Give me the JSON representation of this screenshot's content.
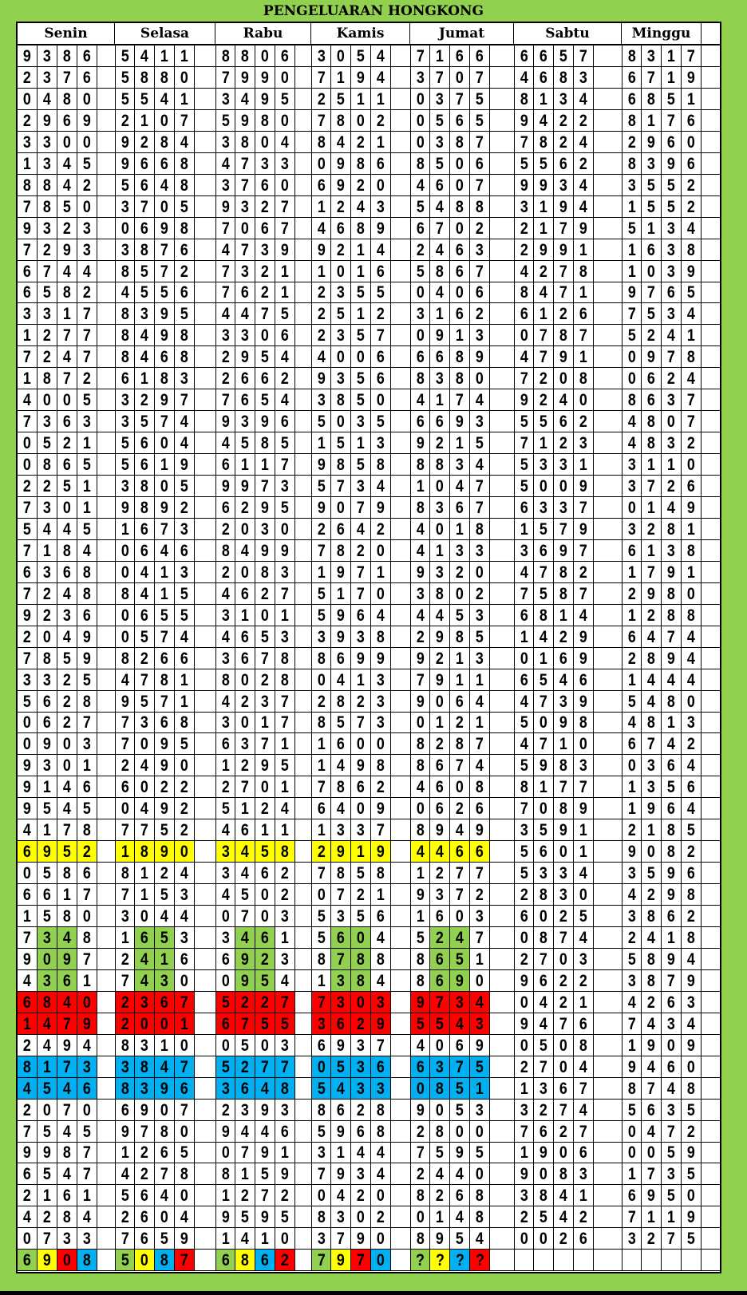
{
  "title": "PENGELUARAN HONGKONG",
  "days": [
    "Senin",
    "Selasa",
    "Rabu",
    "Kamis",
    "Jumat",
    "Sabtu",
    "Minggu"
  ],
  "colors": {
    "background": "#92d050",
    "g": "#92d050",
    "y": "#ffff00",
    "r": "#ff0000",
    "b": "#00b0f0"
  },
  "rows": [
    {
      "cells": [
        "9386",
        "5411",
        "8806",
        "3054",
        "7166",
        "6657",
        "8317"
      ]
    },
    {
      "cells": [
        "2376",
        "5880",
        "7990",
        "7194",
        "3707",
        "4683",
        "6719"
      ]
    },
    {
      "cells": [
        "0480",
        "5541",
        "3495",
        "2511",
        "0375",
        "8134",
        "6851"
      ]
    },
    {
      "cells": [
        "2969",
        "2107",
        "5980",
        "7802",
        "0565",
        "9422",
        "8176"
      ]
    },
    {
      "cells": [
        "3300",
        "9284",
        "3804",
        "8421",
        "0387",
        "7824",
        "2960"
      ]
    },
    {
      "cells": [
        "1345",
        "9668",
        "4733",
        "0986",
        "8506",
        "5562",
        "8396"
      ]
    },
    {
      "cells": [
        "8842",
        "5648",
        "3760",
        "6920",
        "4607",
        "9934",
        "3552"
      ]
    },
    {
      "cells": [
        "7850",
        "3705",
        "9327",
        "1243",
        "5488",
        "3194",
        "1552"
      ]
    },
    {
      "cells": [
        "9323",
        "0698",
        "7067",
        "4689",
        "6702",
        "2179",
        "5134"
      ]
    },
    {
      "cells": [
        "7293",
        "3876",
        "4739",
        "9214",
        "2463",
        "2991",
        "1638"
      ]
    },
    {
      "cells": [
        "6744",
        "8572",
        "7321",
        "1016",
        "5867",
        "4278",
        "1039"
      ]
    },
    {
      "cells": [
        "6582",
        "4556",
        "7621",
        "2355",
        "0406",
        "8471",
        "9765"
      ]
    },
    {
      "cells": [
        "3317",
        "8395",
        "4475",
        "2512",
        "3162",
        "6126",
        "7534"
      ]
    },
    {
      "cells": [
        "1277",
        "8498",
        "3306",
        "2357",
        "0913",
        "0787",
        "5241"
      ]
    },
    {
      "cells": [
        "7247",
        "8468",
        "2954",
        "4006",
        "6689",
        "4791",
        "0978"
      ]
    },
    {
      "cells": [
        "1872",
        "6183",
        "2662",
        "9356",
        "8380",
        "7208",
        "0624"
      ]
    },
    {
      "cells": [
        "4005",
        "3297",
        "7654",
        "3850",
        "4174",
        "9240",
        "8637"
      ]
    },
    {
      "cells": [
        "7363",
        "3574",
        "9396",
        "5035",
        "6693",
        "5562",
        "4807"
      ]
    },
    {
      "cells": [
        "0521",
        "5604",
        "4585",
        "1513",
        "9215",
        "7123",
        "4832"
      ]
    },
    {
      "cells": [
        "0865",
        "5619",
        "6117",
        "9858",
        "8834",
        "5331",
        "3110"
      ]
    },
    {
      "cells": [
        "2251",
        "3805",
        "9973",
        "5734",
        "1047",
        "5009",
        "3726"
      ]
    },
    {
      "cells": [
        "7301",
        "9892",
        "6295",
        "9079",
        "8367",
        "6337",
        "0149"
      ]
    },
    {
      "cells": [
        "5445",
        "1673",
        "2030",
        "2642",
        "4018",
        "1579",
        "3281"
      ]
    },
    {
      "cells": [
        "7184",
        "0646",
        "8499",
        "7820",
        "4133",
        "3697",
        "6138"
      ]
    },
    {
      "cells": [
        "6368",
        "0413",
        "2083",
        "1971",
        "9320",
        "4782",
        "1791"
      ]
    },
    {
      "cells": [
        "7248",
        "8415",
        "4627",
        "5170",
        "3802",
        "7587",
        "2980"
      ]
    },
    {
      "cells": [
        "9236",
        "0655",
        "3101",
        "5964",
        "4453",
        "6814",
        "1288"
      ]
    },
    {
      "cells": [
        "2049",
        "0574",
        "4653",
        "3938",
        "2985",
        "1429",
        "6474"
      ]
    },
    {
      "cells": [
        "7859",
        "8266",
        "3678",
        "8699",
        "9213",
        "0169",
        "2894"
      ]
    },
    {
      "cells": [
        "3325",
        "4781",
        "8028",
        "0413",
        "7911",
        "6546",
        "1444"
      ]
    },
    {
      "cells": [
        "5628",
        "9571",
        "4237",
        "2823",
        "9064",
        "4739",
        "5480"
      ]
    },
    {
      "cells": [
        "0627",
        "7368",
        "3017",
        "8573",
        "0121",
        "5098",
        "4813"
      ]
    },
    {
      "cells": [
        "0903",
        "7095",
        "6371",
        "1600",
        "8287",
        "4710",
        "6742"
      ]
    },
    {
      "cells": [
        "9301",
        "2490",
        "1295",
        "1498",
        "8674",
        "5983",
        "0364"
      ]
    },
    {
      "cells": [
        "9146",
        "6022",
        "2701",
        "7862",
        "4608",
        "8177",
        "1356"
      ]
    },
    {
      "cells": [
        "9545",
        "0492",
        "5124",
        "6409",
        "0626",
        "7089",
        "1964"
      ]
    },
    {
      "cells": [
        "4178",
        "7752",
        "4611",
        "1337",
        "8949",
        "3591",
        "2185"
      ]
    },
    {
      "cells": [
        "6952",
        "1890",
        "3458",
        "2919",
        "4466",
        "5601",
        "9082"
      ],
      "fill": [
        "yyyy",
        "yyyy",
        "yyyy",
        "yyyy",
        "yyyy",
        "----",
        "----"
      ]
    },
    {
      "cells": [
        "0586",
        "8124",
        "3462",
        "7858",
        "1277",
        "5334",
        "3596"
      ]
    },
    {
      "cells": [
        "6617",
        "7153",
        "4502",
        "0721",
        "9372",
        "2830",
        "4298"
      ]
    },
    {
      "cells": [
        "1580",
        "3044",
        "0703",
        "5356",
        "1603",
        "6025",
        "3862"
      ]
    },
    {
      "cells": [
        "7348",
        "1653",
        "3461",
        "5604",
        "5247",
        "0874",
        "2418"
      ],
      "fill": [
        "-gg-",
        "-gg-",
        "-gg-",
        "-gg-",
        "-gg-",
        "----",
        "----"
      ]
    },
    {
      "cells": [
        "9097",
        "2416",
        "6923",
        "8788",
        "8651",
        "2703",
        "5894"
      ],
      "fill": [
        "-gg-",
        "-gg-",
        "-gg-",
        "-gg-",
        "-gg-",
        "----",
        "----"
      ]
    },
    {
      "cells": [
        "4361",
        "7430",
        "0954",
        "1384",
        "8690",
        "9622",
        "3879"
      ],
      "fill": [
        "-gg-",
        "-gg-",
        "-gg-",
        "-gg-",
        "-gg-",
        "----",
        "----"
      ]
    },
    {
      "cells": [
        "6840",
        "2367",
        "5227",
        "7303",
        "9734",
        "0421",
        "4263"
      ],
      "fill": [
        "rrrr",
        "rrrr",
        "rrrr",
        "rrrr",
        "rrrr",
        "----",
        "----"
      ]
    },
    {
      "cells": [
        "1479",
        "2001",
        "6755",
        "3629",
        "5543",
        "9476",
        "7434"
      ],
      "fill": [
        "rrrr",
        "rrrr",
        "rrrr",
        "rrrr",
        "rrrr",
        "----",
        "----"
      ]
    },
    {
      "cells": [
        "2494",
        "8310",
        "0503",
        "6937",
        "4069",
        "0508",
        "1909"
      ]
    },
    {
      "cells": [
        "8173",
        "3847",
        "5277",
        "0536",
        "6375",
        "2704",
        "9460"
      ],
      "fill": [
        "bbbb",
        "bbbb",
        "bbbb",
        "bbbb",
        "bbbb",
        "----",
        "----"
      ]
    },
    {
      "cells": [
        "4546",
        "8396",
        "3648",
        "5433",
        "0851",
        "1367",
        "8748"
      ],
      "fill": [
        "bbbb",
        "bbbb",
        "bbbb",
        "bbbb",
        "bbbb",
        "----",
        "----"
      ]
    },
    {
      "cells": [
        "2070",
        "6907",
        "2393",
        "8628",
        "9053",
        "3274",
        "5635"
      ]
    },
    {
      "cells": [
        "7545",
        "9780",
        "9446",
        "5968",
        "2800",
        "7627",
        "0472"
      ]
    },
    {
      "cells": [
        "9987",
        "1265",
        "0791",
        "3144",
        "7595",
        "1906",
        "0059"
      ]
    },
    {
      "cells": [
        "6547",
        "4278",
        "8159",
        "7934",
        "2440",
        "9083",
        "1735"
      ]
    },
    {
      "cells": [
        "2161",
        "5640",
        "1272",
        "0420",
        "8268",
        "3841",
        "6950"
      ]
    },
    {
      "cells": [
        "4284",
        "2604",
        "9595",
        "8302",
        "0148",
        "2542",
        "7119"
      ]
    },
    {
      "cells": [
        "0733",
        "7659",
        "1410",
        "3790",
        "8954",
        "0026",
        "3275"
      ]
    },
    {
      "cells": [
        "6908",
        "5087",
        "6862",
        "7970",
        "????",
        "",
        ""
      ],
      "fill": [
        "gyrb",
        "gybr",
        "gybr",
        "gyrb",
        "gybr",
        "----",
        "----"
      ]
    }
  ]
}
